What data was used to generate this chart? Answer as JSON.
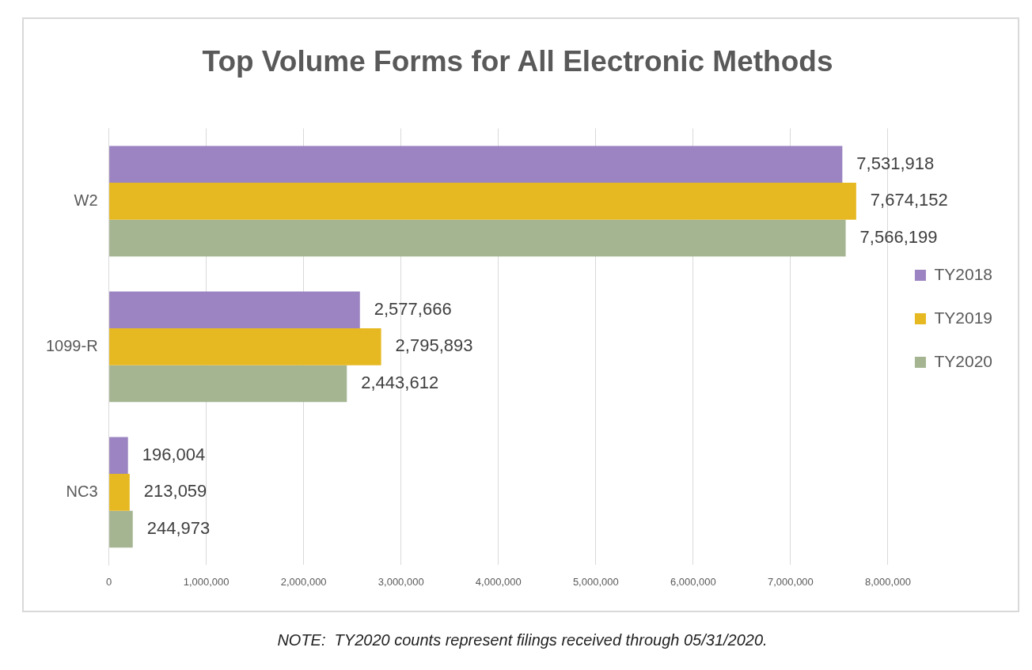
{
  "chart_data": {
    "type": "bar",
    "orientation": "horizontal",
    "title": "Top Volume Forms for All Electronic Methods",
    "categories": [
      "W2",
      "1099-R",
      "NC3"
    ],
    "series": [
      {
        "name": "TY2018",
        "color": "#9b84c1",
        "values": [
          7531918,
          2577666,
          196004
        ],
        "value_labels": [
          "7,531,918",
          "2,577,666",
          "196,004"
        ]
      },
      {
        "name": "TY2019",
        "color": "#e6b922",
        "values": [
          7674152,
          2795893,
          213059
        ],
        "value_labels": [
          "7,674,152",
          "2,795,893",
          "213,059"
        ]
      },
      {
        "name": "TY2020",
        "color": "#a5b592",
        "values": [
          7566199,
          2443612,
          244973
        ],
        "value_labels": [
          "7,566,199",
          "2,443,612",
          "244,973"
        ]
      }
    ],
    "xlim": [
      0,
      8000000
    ],
    "xticks": [
      {
        "value": 0,
        "label": "0"
      },
      {
        "value": 1000000,
        "label": "1,000,000"
      },
      {
        "value": 2000000,
        "label": "2,000,000"
      },
      {
        "value": 3000000,
        "label": "3,000,000"
      },
      {
        "value": 4000000,
        "label": "4,000,000"
      },
      {
        "value": 5000000,
        "label": "5,000,000"
      },
      {
        "value": 6000000,
        "label": "6,000,000"
      },
      {
        "value": 7000000,
        "label": "7,000,000"
      },
      {
        "value": 8000000,
        "label": "8,000,000"
      }
    ],
    "legend": "right",
    "grid": "x",
    "annotations": [
      "NOTE:  TY2020 counts represent filings received through 05/31/2020."
    ]
  }
}
